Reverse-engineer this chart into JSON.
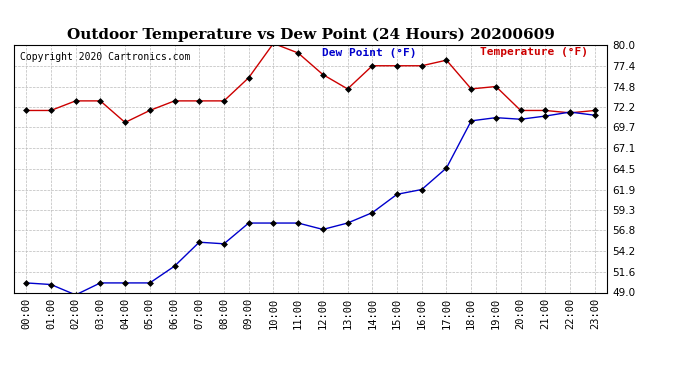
{
  "title": "Outdoor Temperature vs Dew Point (24 Hours) 20200609",
  "copyright": "Copyright 2020 Cartronics.com",
  "legend_dew": "Dew Point (°F)",
  "legend_temp": "Temperature (°F)",
  "x_labels": [
    "00:00",
    "01:00",
    "02:00",
    "03:00",
    "04:00",
    "05:00",
    "06:00",
    "07:00",
    "08:00",
    "09:00",
    "10:00",
    "11:00",
    "12:00",
    "13:00",
    "14:00",
    "15:00",
    "16:00",
    "17:00",
    "18:00",
    "19:00",
    "20:00",
    "21:00",
    "22:00",
    "23:00"
  ],
  "temperature": [
    71.8,
    71.8,
    73.0,
    73.0,
    70.3,
    71.8,
    73.0,
    73.0,
    73.0,
    75.9,
    80.2,
    79.0,
    76.3,
    74.5,
    77.4,
    77.4,
    77.4,
    78.1,
    74.5,
    74.8,
    71.8,
    71.8,
    71.5,
    71.8
  ],
  "dew_point": [
    50.2,
    50.0,
    48.7,
    50.2,
    50.2,
    50.2,
    52.3,
    55.3,
    55.1,
    57.7,
    57.7,
    57.7,
    56.9,
    57.7,
    59.0,
    61.3,
    61.9,
    64.6,
    70.5,
    70.9,
    70.7,
    71.1,
    71.6,
    71.2
  ],
  "ylim": [
    49.0,
    80.0
  ],
  "yticks": [
    49.0,
    51.6,
    54.2,
    56.8,
    59.3,
    61.9,
    64.5,
    67.1,
    69.7,
    72.2,
    74.8,
    77.4,
    80.0
  ],
  "temp_color": "#cc0000",
  "dew_color": "#0000cc",
  "grid_color": "#bbbbbb",
  "bg_color": "#ffffff",
  "marker": "D",
  "marker_size": 3,
  "title_fontsize": 11,
  "tick_fontsize": 7.5,
  "legend_fontsize": 8,
  "copyright_fontsize": 7
}
